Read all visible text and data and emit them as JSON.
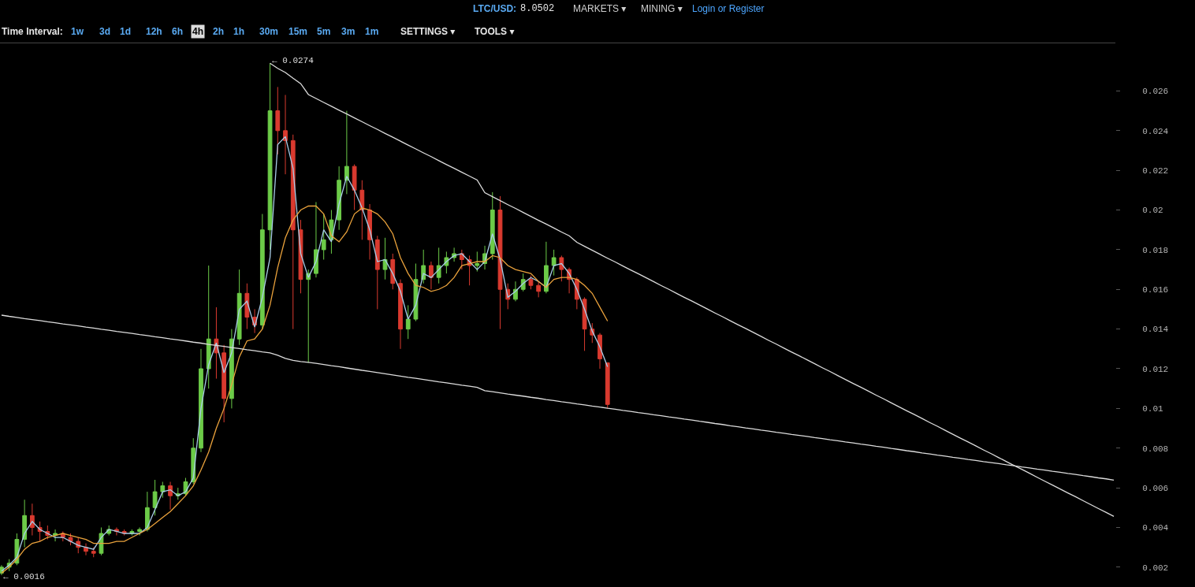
{
  "chart_data": {
    "type": "candlestick",
    "categories": [
      null,
      null,
      null,
      null,
      null,
      null,
      null,
      null,
      null,
      null,
      null,
      null,
      null,
      null,
      null,
      null,
      null,
      null,
      null,
      null,
      null,
      null,
      null,
      null,
      null,
      null,
      null,
      null,
      null,
      null,
      null,
      null,
      null,
      null,
      null,
      null,
      null,
      null,
      null,
      null,
      null,
      null,
      null,
      null,
      null,
      null,
      null,
      null,
      null,
      null,
      null,
      null,
      null,
      null,
      null,
      null,
      null,
      null,
      null,
      null,
      null,
      null,
      null,
      null,
      null,
      null,
      null,
      null,
      null,
      null,
      null,
      null,
      null,
      null,
      null,
      null,
      null,
      null,
      null,
      null,
      null,
      null,
      null,
      null,
      null,
      null,
      null,
      null,
      null,
      null,
      null,
      null,
      null,
      null,
      null,
      null,
      null,
      null,
      null,
      null,
      null,
      null,
      null,
      null,
      null,
      null,
      null,
      null,
      null,
      null,
      null,
      null,
      null,
      null,
      null,
      null,
      null,
      null,
      null,
      null,
      null,
      null,
      null,
      null,
      null,
      null,
      null,
      null,
      null,
      null,
      null,
      null,
      null,
      null,
      null,
      null,
      null,
      null,
      null,
      null,
      null,
      null,
      null,
      null,
      null,
      null
    ],
    "ohlc": [
      [
        0.0017,
        0.0021,
        0.0016,
        0.002
      ],
      [
        0.002,
        0.0024,
        0.0018,
        0.0022
      ],
      [
        0.0022,
        0.0037,
        0.0021,
        0.0034
      ],
      [
        0.0034,
        0.0054,
        0.003,
        0.0046
      ],
      [
        0.0046,
        0.0052,
        0.0036,
        0.004
      ],
      [
        0.004,
        0.0043,
        0.0033,
        0.0038
      ],
      [
        0.0038,
        0.0041,
        0.0034,
        0.0036
      ],
      [
        0.0036,
        0.0039,
        0.0033,
        0.0037
      ],
      [
        0.0037,
        0.0038,
        0.0033,
        0.0035
      ],
      [
        0.0035,
        0.0037,
        0.0031,
        0.0033
      ],
      [
        0.0033,
        0.0035,
        0.0027,
        0.003
      ],
      [
        0.003,
        0.0032,
        0.0026,
        0.0028
      ],
      [
        0.0028,
        0.003,
        0.0025,
        0.0027
      ],
      [
        0.0027,
        0.004,
        0.0026,
        0.0037
      ],
      [
        0.0037,
        0.0041,
        0.0036,
        0.0039
      ],
      [
        0.0039,
        0.004,
        0.0036,
        0.0038
      ],
      [
        0.0038,
        0.0039,
        0.0036,
        0.0037
      ],
      [
        0.0037,
        0.0039,
        0.0036,
        0.0038
      ],
      [
        0.0038,
        0.004,
        0.0036,
        0.0039
      ],
      [
        0.0039,
        0.0058,
        0.0038,
        0.005
      ],
      [
        0.005,
        0.0064,
        0.0046,
        0.0058
      ],
      [
        0.0058,
        0.0063,
        0.0055,
        0.0061
      ],
      [
        0.0061,
        0.0063,
        0.0049,
        0.0056
      ],
      [
        0.0056,
        0.006,
        0.0054,
        0.0057
      ],
      [
        0.0057,
        0.0065,
        0.0056,
        0.0063
      ],
      [
        0.0063,
        0.0085,
        0.0062,
        0.008
      ],
      [
        0.008,
        0.013,
        0.0078,
        0.012
      ],
      [
        0.012,
        0.0172,
        0.011,
        0.0135
      ],
      [
        0.0135,
        0.0151,
        0.0115,
        0.0128
      ],
      [
        0.0128,
        0.0132,
        0.0093,
        0.0105
      ],
      [
        0.0105,
        0.014,
        0.01,
        0.0135
      ],
      [
        0.0135,
        0.017,
        0.0132,
        0.0158
      ],
      [
        0.0158,
        0.0163,
        0.014,
        0.0146
      ],
      [
        0.0146,
        0.015,
        0.0138,
        0.0142
      ],
      [
        0.0142,
        0.0198,
        0.014,
        0.019
      ],
      [
        0.019,
        0.0274,
        0.018,
        0.025
      ],
      [
        0.025,
        0.0262,
        0.0228,
        0.024
      ],
      [
        0.024,
        0.0258,
        0.0218,
        0.0235
      ],
      [
        0.0235,
        0.0238,
        0.014,
        0.019
      ],
      [
        0.019,
        0.0195,
        0.0158,
        0.0165
      ],
      [
        0.0165,
        0.017,
        0.0123,
        0.0168
      ],
      [
        0.0168,
        0.0204,
        0.0166,
        0.018
      ],
      [
        0.018,
        0.0198,
        0.0175,
        0.0185
      ],
      [
        0.0185,
        0.02,
        0.0178,
        0.0195
      ],
      [
        0.0195,
        0.0222,
        0.019,
        0.0215
      ],
      [
        0.0215,
        0.025,
        0.0208,
        0.0222
      ],
      [
        0.0222,
        0.0223,
        0.02,
        0.021
      ],
      [
        0.021,
        0.0215,
        0.0185,
        0.02
      ],
      [
        0.02,
        0.0203,
        0.0175,
        0.0185
      ],
      [
        0.0185,
        0.0187,
        0.015,
        0.017
      ],
      [
        0.017,
        0.0186,
        0.0165,
        0.0175
      ],
      [
        0.0175,
        0.0178,
        0.016,
        0.0163
      ],
      [
        0.0163,
        0.0165,
        0.013,
        0.014
      ],
      [
        0.014,
        0.0152,
        0.0135,
        0.0145
      ],
      [
        0.0145,
        0.0173,
        0.0144,
        0.0165
      ],
      [
        0.0165,
        0.018,
        0.0163,
        0.0172
      ],
      [
        0.0172,
        0.0174,
        0.016,
        0.0166
      ],
      [
        0.0166,
        0.0181,
        0.0163,
        0.0172
      ],
      [
        0.0172,
        0.0179,
        0.0168,
        0.0176
      ],
      [
        0.0176,
        0.0181,
        0.0174,
        0.0178
      ],
      [
        0.0178,
        0.018,
        0.017,
        0.0175
      ],
      [
        0.0175,
        0.0177,
        0.0162,
        0.0172
      ],
      [
        0.0172,
        0.0179,
        0.0169,
        0.0173
      ],
      [
        0.0173,
        0.0182,
        0.017,
        0.0178
      ],
      [
        0.0178,
        0.0209,
        0.0175,
        0.02
      ],
      [
        0.02,
        0.0207,
        0.014,
        0.016
      ],
      [
        0.016,
        0.0163,
        0.015,
        0.0155
      ],
      [
        0.0155,
        0.0164,
        0.0154,
        0.016
      ],
      [
        0.016,
        0.0168,
        0.0159,
        0.0165
      ],
      [
        0.0165,
        0.0167,
        0.016,
        0.0162
      ],
      [
        0.0162,
        0.0164,
        0.0156,
        0.0159
      ],
      [
        0.0159,
        0.0184,
        0.0158,
        0.0172
      ],
      [
        0.0172,
        0.018,
        0.0167,
        0.0176
      ],
      [
        0.0176,
        0.0177,
        0.0164,
        0.017
      ],
      [
        0.017,
        0.0171,
        0.0158,
        0.0165
      ],
      [
        0.0165,
        0.0166,
        0.015,
        0.0155
      ],
      [
        0.0155,
        0.0156,
        0.0129,
        0.014
      ],
      [
        0.014,
        0.0143,
        0.0133,
        0.0137
      ],
      [
        0.0137,
        0.0138,
        0.012,
        0.0125
      ],
      [
        0.0123,
        0.0123,
        0.01,
        0.0102
      ],
      null,
      null,
      null,
      null,
      null,
      null,
      null,
      null,
      null,
      null,
      null,
      null,
      null,
      null,
      null,
      null,
      null,
      null,
      null,
      null,
      null,
      null,
      null,
      null,
      null,
      null,
      null,
      null,
      null,
      null,
      null,
      null,
      null,
      null,
      null,
      null,
      null,
      null,
      null,
      null,
      null,
      null,
      null,
      null,
      null,
      null,
      null,
      null,
      null,
      null,
      null,
      null,
      null,
      null,
      null,
      null,
      null,
      null,
      null,
      null,
      null,
      null,
      null,
      null,
      null,
      null
    ],
    "colors": [
      "#6ccb48",
      "#6ccb48",
      "#6ccb48",
      "#6ccb48",
      "#d93a2f",
      "#d93a2f",
      "#d93a2f",
      "#6ccb48",
      "#d93a2f",
      "#d93a2f",
      "#d93a2f",
      "#d93a2f",
      "#d93a2f",
      "#6ccb48",
      "#6ccb48",
      "#d93a2f",
      "#d93a2f",
      "#6ccb48",
      "#6ccb48",
      "#6ccb48",
      "#6ccb48",
      "#6ccb48",
      "#d93a2f",
      "#6ccb48",
      "#6ccb48",
      "#6ccb48",
      "#6ccb48",
      "#6ccb48",
      "#d93a2f",
      "#d93a2f",
      "#6ccb48",
      "#6ccb48",
      "#d93a2f",
      "#d93a2f",
      "#6ccb48",
      "#6ccb48",
      "#d93a2f",
      "#d93a2f",
      "#d93a2f",
      "#d93a2f",
      "#6ccb48",
      "#6ccb48",
      "#6ccb48",
      "#6ccb48",
      "#6ccb48",
      "#6ccb48",
      "#d93a2f",
      "#d93a2f",
      "#d93a2f",
      "#d93a2f",
      "#6ccb48",
      "#d93a2f",
      "#d93a2f",
      "#6ccb48",
      "#6ccb48",
      "#6ccb48",
      "#d93a2f",
      "#6ccb48",
      "#6ccb48",
      "#6ccb48",
      "#d93a2f",
      "#d93a2f",
      "#6ccb48",
      "#6ccb48",
      "#6ccb48",
      "#d93a2f",
      "#d93a2f",
      "#6ccb48",
      "#6ccb48",
      "#d93a2f",
      "#d93a2f",
      "#6ccb48",
      "#6ccb48",
      "#d93a2f",
      "#d93a2f",
      "#d93a2f",
      "#d93a2f",
      "#d93a2f",
      "#d93a2f",
      "#d93a2f",
      null,
      null,
      null,
      null,
      null,
      null,
      null,
      null,
      null,
      null,
      null,
      null,
      null,
      null,
      null,
      null,
      null,
      null,
      null,
      null,
      null,
      null,
      null,
      null,
      null,
      null,
      null,
      null,
      null,
      null,
      null,
      null,
      null,
      null,
      null,
      null,
      null,
      null,
      null,
      null,
      null,
      null,
      null,
      null,
      null,
      null,
      null,
      null,
      null,
      null,
      null,
      null,
      null,
      null,
      null,
      null,
      null,
      null,
      null,
      null,
      null,
      null,
      null,
      null,
      null,
      null
    ],
    "series": [
      {
        "type": "line",
        "color": "#a9cde8",
        "values": [
          0.0018,
          0.0021,
          0.0025,
          0.0037,
          0.0043,
          0.0039,
          0.0037,
          0.0035,
          0.0035,
          0.0033,
          0.0031,
          0.003,
          0.0029,
          0.0035,
          0.0039,
          0.0038,
          0.0037,
          0.0037,
          0.0037,
          0.004,
          0.0049,
          0.0058,
          0.0059,
          0.0056,
          0.0058,
          0.0065,
          0.01,
          0.0122,
          0.0133,
          0.0118,
          0.0128,
          0.015,
          0.0154,
          0.0141,
          0.0156,
          0.0176,
          0.0233,
          0.0237,
          0.0221,
          0.0178,
          0.0166,
          0.0174,
          0.019,
          0.0184,
          0.0203,
          0.0217,
          0.021,
          0.0201,
          0.019,
          0.0174,
          0.0175,
          0.0168,
          0.0159,
          0.0145,
          0.0152,
          0.0168,
          0.0166,
          0.017,
          0.0174,
          0.0177,
          0.0178,
          0.0174,
          0.017,
          0.0174,
          0.0188,
          0.0175,
          0.0156,
          0.0159,
          0.0163,
          0.0166,
          0.0164,
          0.0161,
          0.0172,
          0.0173,
          0.0168,
          0.016,
          0.015,
          0.0139,
          0.0131,
          0.0121,
          null,
          null,
          null,
          null,
          null,
          null,
          null,
          null,
          null,
          null,
          null,
          null,
          null,
          null,
          null,
          null,
          null,
          null,
          null,
          null,
          null,
          null,
          null,
          null,
          null,
          null,
          null,
          null,
          null,
          null,
          null,
          null,
          null,
          null,
          null,
          null,
          null,
          null,
          null,
          null,
          null,
          null,
          null,
          null,
          null,
          null,
          null,
          null,
          null,
          null,
          null,
          null,
          null,
          null,
          null,
          null,
          null,
          null,
          null,
          null,
          null,
          null,
          null,
          null,
          null,
          null
        ]
      },
      {
        "type": "line",
        "color": "#eaa23c",
        "values": [
          0.0017,
          0.002,
          0.0024,
          0.0029,
          0.0032,
          0.0033,
          0.0035,
          0.0036,
          0.0037,
          0.0036,
          0.0035,
          0.0034,
          0.0032,
          0.0032,
          0.0032,
          0.0033,
          0.0033,
          0.0035,
          0.0037,
          0.0039,
          0.0042,
          0.0045,
          0.0048,
          0.0052,
          0.0056,
          0.0061,
          0.0069,
          0.0078,
          0.009,
          0.01,
          0.0112,
          0.0126,
          0.0134,
          0.0135,
          0.014,
          0.0152,
          0.0171,
          0.0186,
          0.0195,
          0.02,
          0.0202,
          0.0202,
          0.0198,
          0.0187,
          0.0184,
          0.0189,
          0.0198,
          0.0201,
          0.02,
          0.0198,
          0.0194,
          0.0188,
          0.0176,
          0.0168,
          0.0162,
          0.0161,
          0.0159,
          0.016,
          0.0162,
          0.0166,
          0.0172,
          0.0173,
          0.0174,
          0.0174,
          0.0177,
          0.0176,
          0.0172,
          0.017,
          0.0169,
          0.0168,
          0.0164,
          0.0161,
          0.0165,
          0.0166,
          0.0166,
          0.0165,
          0.0162,
          0.0158,
          0.0151,
          0.0144,
          null,
          null,
          null,
          null,
          null,
          null,
          null,
          null,
          null,
          null,
          null,
          null,
          null,
          null,
          null,
          null,
          null,
          null,
          null,
          null,
          null,
          null,
          null,
          null,
          null,
          null,
          null,
          null,
          null,
          null,
          null,
          null,
          null,
          null,
          null,
          null,
          null,
          null,
          null,
          null,
          null,
          null,
          null,
          null,
          null,
          null,
          null,
          null,
          null,
          null,
          null,
          null,
          null,
          null,
          null,
          null,
          null,
          null,
          null,
          null,
          null,
          null,
          null,
          null,
          null,
          null
        ]
      },
      {
        "type": "line",
        "color": "#dcdcdc",
        "values": [
          null,
          null,
          null,
          null,
          null,
          null,
          null,
          null,
          null,
          null,
          null,
          null,
          null,
          null,
          null,
          null,
          null,
          null,
          null,
          null,
          null,
          null,
          null,
          null,
          null,
          null,
          null,
          null,
          null,
          null,
          null,
          null,
          null,
          null,
          null,
          0.0274,
          0.02714,
          0.02693,
          0.02664,
          0.02637,
          0.02582,
          0.02562,
          0.02542,
          0.02523,
          0.02503,
          0.02484,
          0.02464,
          0.02445,
          0.02425,
          0.02406,
          0.02386,
          0.02367,
          0.02347,
          0.02327,
          0.02308,
          0.02288,
          0.02269,
          0.02249,
          0.02229,
          0.0221,
          0.0219,
          0.02171,
          0.02151,
          0.02087,
          0.02067,
          0.02047,
          0.02027,
          0.02008,
          0.01988,
          0.01968,
          0.01948,
          0.01929,
          0.01909,
          0.01889,
          0.0187,
          0.01837,
          0.01817,
          0.01797,
          0.01777,
          0.01757,
          0.01738,
          0.01718,
          0.01698,
          0.01679,
          0.01659,
          0.01639,
          0.01619,
          0.016,
          0.0158,
          0.0156,
          0.01541,
          0.01521,
          0.01501,
          0.01481,
          0.01462,
          0.01442,
          0.01422,
          0.01403,
          0.01383,
          0.01363,
          0.01343,
          0.01324,
          0.01304,
          0.01284,
          0.01265,
          0.01245,
          0.01225,
          0.01205,
          0.01186,
          0.01166,
          0.01146,
          0.01126,
          0.01107,
          0.01087,
          0.01067,
          0.01048,
          0.01028,
          0.01008,
          0.00988,
          0.00969,
          0.00949,
          0.00929,
          0.0091,
          0.0089,
          0.0087,
          0.0085,
          0.00831,
          0.00811,
          0.00791,
          0.00772,
          0.00752,
          0.00732,
          0.00712,
          0.00693,
          0.00673,
          0.00653,
          0.00633,
          0.00614,
          0.00594,
          0.00574,
          0.00555,
          0.00535,
          0.00515,
          0.00495,
          0.00476,
          0.00456
        ]
      },
      {
        "type": "line",
        "color": "#dcdcdc",
        "values": [
          0.0147,
          0.01464,
          0.01459,
          0.01453,
          0.01448,
          0.01443,
          0.01437,
          0.01432,
          0.01426,
          0.01421,
          0.01416,
          0.0141,
          0.01405,
          0.01399,
          0.01394,
          0.01388,
          0.01383,
          0.01378,
          0.01372,
          0.01367,
          0.01361,
          0.01356,
          0.0135,
          0.01345,
          0.0134,
          0.01334,
          0.01329,
          0.01323,
          0.01318,
          0.01313,
          0.01307,
          0.01302,
          0.01296,
          0.01291,
          0.01285,
          0.0128,
          0.01268,
          0.01252,
          0.01242,
          0.01236,
          0.01232,
          0.01227,
          0.01221,
          0.01215,
          0.0121,
          0.01204,
          0.01198,
          0.01192,
          0.01187,
          0.01181,
          0.01175,
          0.01169,
          0.01163,
          0.01157,
          0.01152,
          0.01146,
          0.0114,
          0.01134,
          0.01129,
          0.01123,
          0.01117,
          0.01112,
          0.01106,
          0.01089,
          0.01084,
          0.01078,
          0.01072,
          0.01067,
          0.01062,
          0.01056,
          0.01051,
          0.01045,
          0.0104,
          0.01034,
          0.01029,
          0.01023,
          0.01018,
          0.01012,
          0.01007,
          0.01001,
          0.00996,
          0.0099,
          0.00985,
          0.00979,
          0.00974,
          0.00968,
          0.00963,
          0.00957,
          0.00952,
          0.00946,
          0.00941,
          0.00935,
          0.0093,
          0.00924,
          0.00919,
          0.00913,
          0.00908,
          0.00902,
          0.00897,
          0.00891,
          0.00886,
          0.0088,
          0.00875,
          0.00869,
          0.00864,
          0.00859,
          0.00853,
          0.00848,
          0.00842,
          0.00837,
          0.00831,
          0.00826,
          0.0082,
          0.00815,
          0.00809,
          0.00804,
          0.00798,
          0.00793,
          0.00787,
          0.00782,
          0.00776,
          0.00771,
          0.00765,
          0.0076,
          0.00754,
          0.00749,
          0.00743,
          0.00738,
          0.00732,
          0.00727,
          0.00722,
          0.00716,
          0.00711,
          0.00705,
          0.007,
          0.00694,
          0.00689,
          0.00683,
          0.00678,
          0.00672,
          0.00667,
          0.00661,
          0.00656,
          0.0065,
          0.00645,
          0.00639
        ]
      }
    ],
    "ylim": [
      0.001,
      0.0284
    ],
    "yticks": [
      0.002,
      0.004,
      0.006,
      0.008,
      0.01,
      0.012,
      0.014,
      0.016,
      0.018,
      0.02,
      0.022,
      0.024,
      0.026
    ],
    "tick_labels": "y",
    "annotations": [
      "LTC/USD:",
      "8.0502",
      "MARKETS ▾",
      "MINING ▾",
      "Login or Register",
      "Time Interval:",
      "1w",
      "3d",
      "1d",
      "12h",
      "6h",
      "4h",
      "2h",
      "1h",
      "30m",
      "15m",
      "5m",
      "3m",
      "1m",
      "SETTINGS ▾",
      "TOOLS ▾",
      "← 0.0274",
      "← 0.0016"
    ]
  }
}
